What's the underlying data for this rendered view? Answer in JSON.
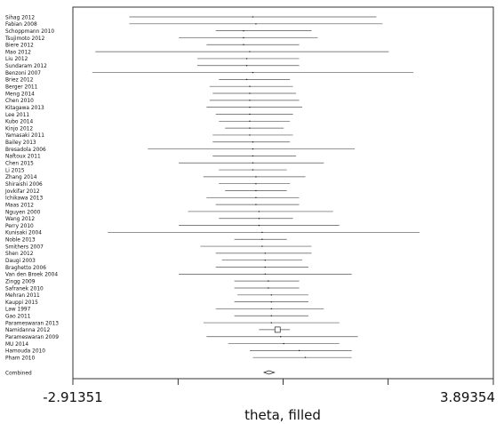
{
  "chart_data": {
    "type": "forest",
    "xlabel": "theta, filled",
    "xlim": [
      -2.91351,
      3.89354
    ],
    "xtick_labels": [
      "-2.91351",
      "3.89354"
    ],
    "grid": false,
    "studies": [
      {
        "name": "Sihag 2012",
        "lo": -2.0,
        "hi": 2.0,
        "est": 0.0
      },
      {
        "name": "Fabian 2008",
        "lo": -2.0,
        "hi": 2.1,
        "est": 0.05
      },
      {
        "name": "Schoppmann 2010",
        "lo": -0.6,
        "hi": 0.95,
        "est": -0.15
      },
      {
        "name": "Tsujimoto 2012",
        "lo": -1.2,
        "hi": 1.05,
        "est": -0.15
      },
      {
        "name": "Biere 2012",
        "lo": -0.75,
        "hi": 0.75,
        "est": -0.15
      },
      {
        "name": "Mao 2012",
        "lo": -2.55,
        "hi": 2.2,
        "est": -0.05
      },
      {
        "name": "Liu 2012",
        "lo": -0.9,
        "hi": 0.75,
        "est": -0.1
      },
      {
        "name": "Sundaram 2012",
        "lo": -0.9,
        "hi": 0.75,
        "est": -0.1
      },
      {
        "name": "Benzoni 2007",
        "lo": -2.6,
        "hi": 2.6,
        "est": 0.0
      },
      {
        "name": "Briez 2012",
        "lo": -0.55,
        "hi": 0.6,
        "est": -0.1
      },
      {
        "name": "Berger 2011",
        "lo": -0.7,
        "hi": 0.65,
        "est": -0.05
      },
      {
        "name": "Meng 2014",
        "lo": -0.65,
        "hi": 0.7,
        "est": -0.05
      },
      {
        "name": "Chen 2010",
        "lo": -0.7,
        "hi": 0.75,
        "est": -0.05
      },
      {
        "name": "Kitagawa 2013",
        "lo": -0.75,
        "hi": 0.8,
        "est": -0.05
      },
      {
        "name": "Lee 2011",
        "lo": -0.6,
        "hi": 0.65,
        "est": -0.05
      },
      {
        "name": "Kubo 2014",
        "lo": -0.55,
        "hi": 0.6,
        "est": -0.05
      },
      {
        "name": "Kinjo 2012",
        "lo": -0.45,
        "hi": 0.5,
        "est": -0.05
      },
      {
        "name": "Yamasaki 2011",
        "lo": -0.65,
        "hi": 0.65,
        "est": -0.05
      },
      {
        "name": "Bailey 2013",
        "lo": -0.65,
        "hi": 0.6,
        "est": 0.0
      },
      {
        "name": "Bresadola 2006",
        "lo": -1.7,
        "hi": 1.65,
        "est": 0.0
      },
      {
        "name": "Naftoux 2011",
        "lo": -0.65,
        "hi": 0.7,
        "est": 0.0
      },
      {
        "name": "Chen 2015",
        "lo": -1.2,
        "hi": 1.15,
        "est": 0.0
      },
      {
        "name": "Li 2015",
        "lo": -0.55,
        "hi": 0.55,
        "est": 0.0
      },
      {
        "name": "Zhang 2014",
        "lo": -0.8,
        "hi": 0.85,
        "est": 0.05
      },
      {
        "name": "Shiraishi 2006",
        "lo": -0.55,
        "hi": 0.6,
        "est": 0.05
      },
      {
        "name": "Jovkifar 2012",
        "lo": -0.45,
        "hi": 0.55,
        "est": 0.05
      },
      {
        "name": "Ichikawa 2013",
        "lo": -0.75,
        "hi": 0.75,
        "est": 0.05
      },
      {
        "name": "Maas 2012",
        "lo": -0.6,
        "hi": 0.75,
        "est": 0.05
      },
      {
        "name": "Nguyen 2000",
        "lo": -1.05,
        "hi": 1.3,
        "est": 0.1
      },
      {
        "name": "Wang 2012",
        "lo": -0.55,
        "hi": 0.65,
        "est": 0.1
      },
      {
        "name": "Perry 2010",
        "lo": -1.2,
        "hi": 1.4,
        "est": 0.1
      },
      {
        "name": "Kunisaki 2004",
        "lo": -2.35,
        "hi": 2.7,
        "est": 0.15
      },
      {
        "name": "Noble 2013",
        "lo": -0.3,
        "hi": 0.55,
        "est": 0.15
      },
      {
        "name": "Smithers 2007",
        "lo": -0.85,
        "hi": 0.95,
        "est": 0.15
      },
      {
        "name": "Shen 2012",
        "lo": -0.6,
        "hi": 0.95,
        "est": 0.2
      },
      {
        "name": "Daugi 2003",
        "lo": -0.5,
        "hi": 0.8,
        "est": 0.2
      },
      {
        "name": "Braghetto 2006",
        "lo": -0.6,
        "hi": 0.9,
        "est": 0.2
      },
      {
        "name": "Van den Broek 2004",
        "lo": -1.2,
        "hi": 1.6,
        "est": 0.2
      },
      {
        "name": "Zingg 2009",
        "lo": -0.3,
        "hi": 0.75,
        "est": 0.25
      },
      {
        "name": "Safranek 2010",
        "lo": -0.3,
        "hi": 0.75,
        "est": 0.25
      },
      {
        "name": "Mehran 2011",
        "lo": -0.25,
        "hi": 0.9,
        "est": 0.3
      },
      {
        "name": "Kauppi 2015",
        "lo": -0.3,
        "hi": 0.9,
        "est": 0.3
      },
      {
        "name": "Law 1997",
        "lo": -0.6,
        "hi": 1.15,
        "est": 0.3
      },
      {
        "name": "Gao 2011",
        "lo": -0.3,
        "hi": 0.9,
        "est": 0.3
      },
      {
        "name": "Parameswaran 2013",
        "lo": -0.8,
        "hi": 1.4,
        "est": 0.3
      },
      {
        "name": "Namidanna 2012",
        "lo": 0.1,
        "hi": 0.6,
        "est": 0.4
      },
      {
        "name": "Parameswaran 2009",
        "lo": -0.75,
        "hi": 1.7,
        "est": 0.45
      },
      {
        "name": "MU 2014",
        "lo": -0.4,
        "hi": 1.4,
        "est": 0.5
      },
      {
        "name": "Hamouda 2010",
        "lo": -0.05,
        "hi": 1.6,
        "est": 0.75
      },
      {
        "name": "Pham 2010",
        "lo": 0.0,
        "hi": 1.6,
        "est": 0.85
      }
    ],
    "combined": {
      "name": "Combined",
      "lo": 0.18,
      "hi": 0.35,
      "est": 0.26
    }
  }
}
